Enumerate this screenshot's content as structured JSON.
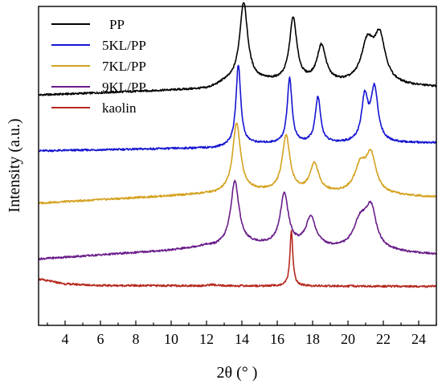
{
  "chart_data": {
    "type": "line",
    "title": "",
    "xlabel": "2θ (° )",
    "ylabel": "Intensity (a.u.)",
    "xlim": [
      2.5,
      25
    ],
    "ylim": [
      0,
      1
    ],
    "xticks": [
      4,
      6,
      8,
      10,
      12,
      14,
      16,
      18,
      20,
      22,
      24
    ],
    "x_minor_step": 1,
    "y_tick_labels": false,
    "grid": false,
    "legend_position": "top-left",
    "colors": {
      "PP": "#000000",
      "5KL/PP": "#1515d2",
      "7KL/PP": "#d4a21f",
      "9KL/PP": "#6a1d8a",
      "kaolin": "#b5281e"
    },
    "series": [
      {
        "name": "PP",
        "baseline": [
          [
            2.5,
            0.722
          ],
          [
            12,
            0.741
          ],
          [
            13,
            0.756
          ],
          [
            25,
            0.735
          ]
        ],
        "peaks": [
          {
            "x": 14.1,
            "height": 0.245,
            "width": 0.27
          },
          {
            "x": 16.9,
            "height": 0.198,
            "width": 0.25
          },
          {
            "x": 18.5,
            "height": 0.114,
            "width": 0.3
          },
          {
            "x": 21.1,
            "height": 0.123,
            "width": 0.42
          },
          {
            "x": 21.8,
            "height": 0.141,
            "width": 0.38
          }
        ],
        "peak_curve_start": 12.5
      },
      {
        "name": "5KL/PP",
        "baseline": [
          [
            2.5,
            0.547
          ],
          [
            12,
            0.556
          ],
          [
            25,
            0.56
          ]
        ],
        "peaks": [
          {
            "x": 13.8,
            "height": 0.249,
            "width": 0.16
          },
          {
            "x": 16.7,
            "height": 0.205,
            "width": 0.16
          },
          {
            "x": 18.3,
            "height": 0.144,
            "width": 0.18
          },
          {
            "x": 20.95,
            "height": 0.137,
            "width": 0.22
          },
          {
            "x": 21.5,
            "height": 0.166,
            "width": 0.24
          }
        ],
        "peak_curve_start": 12.5
      },
      {
        "name": "7KL/PP",
        "baseline": [
          [
            2.5,
            0.383
          ],
          [
            12,
            0.412
          ],
          [
            13,
            0.412
          ],
          [
            25,
            0.39
          ]
        ],
        "peaks": [
          {
            "x": 13.7,
            "height": 0.213,
            "width": 0.26
          },
          {
            "x": 16.5,
            "height": 0.175,
            "width": 0.26
          },
          {
            "x": 18.1,
            "height": 0.089,
            "width": 0.3
          },
          {
            "x": 20.7,
            "height": 0.083,
            "width": 0.4
          },
          {
            "x": 21.3,
            "height": 0.115,
            "width": 0.34
          }
        ],
        "peak_curve_start": 12.5
      },
      {
        "name": "9KL/PP",
        "baseline": [
          [
            2.5,
            0.208
          ],
          [
            10,
            0.235
          ],
          [
            12,
            0.248
          ],
          [
            25,
            0.21
          ]
        ],
        "peaks": [
          {
            "x": 13.6,
            "height": 0.198,
            "width": 0.28
          },
          {
            "x": 16.4,
            "height": 0.161,
            "width": 0.28
          },
          {
            "x": 17.9,
            "height": 0.092,
            "width": 0.34
          },
          {
            "x": 20.7,
            "height": 0.086,
            "width": 0.46
          },
          {
            "x": 21.3,
            "height": 0.121,
            "width": 0.36
          }
        ],
        "peak_curve_start": 12.5
      },
      {
        "name": "kaolin",
        "baseline": [
          [
            2.5,
            0.145
          ],
          [
            4,
            0.13
          ],
          [
            6,
            0.125
          ],
          [
            25,
            0.122
          ]
        ],
        "peaks": [
          {
            "x": 16.8,
            "height": 0.172,
            "width": 0.1
          },
          {
            "x": 12.3,
            "height": 0.004,
            "width": 0.2
          }
        ],
        "peak_curve_start": 2.5
      }
    ]
  }
}
